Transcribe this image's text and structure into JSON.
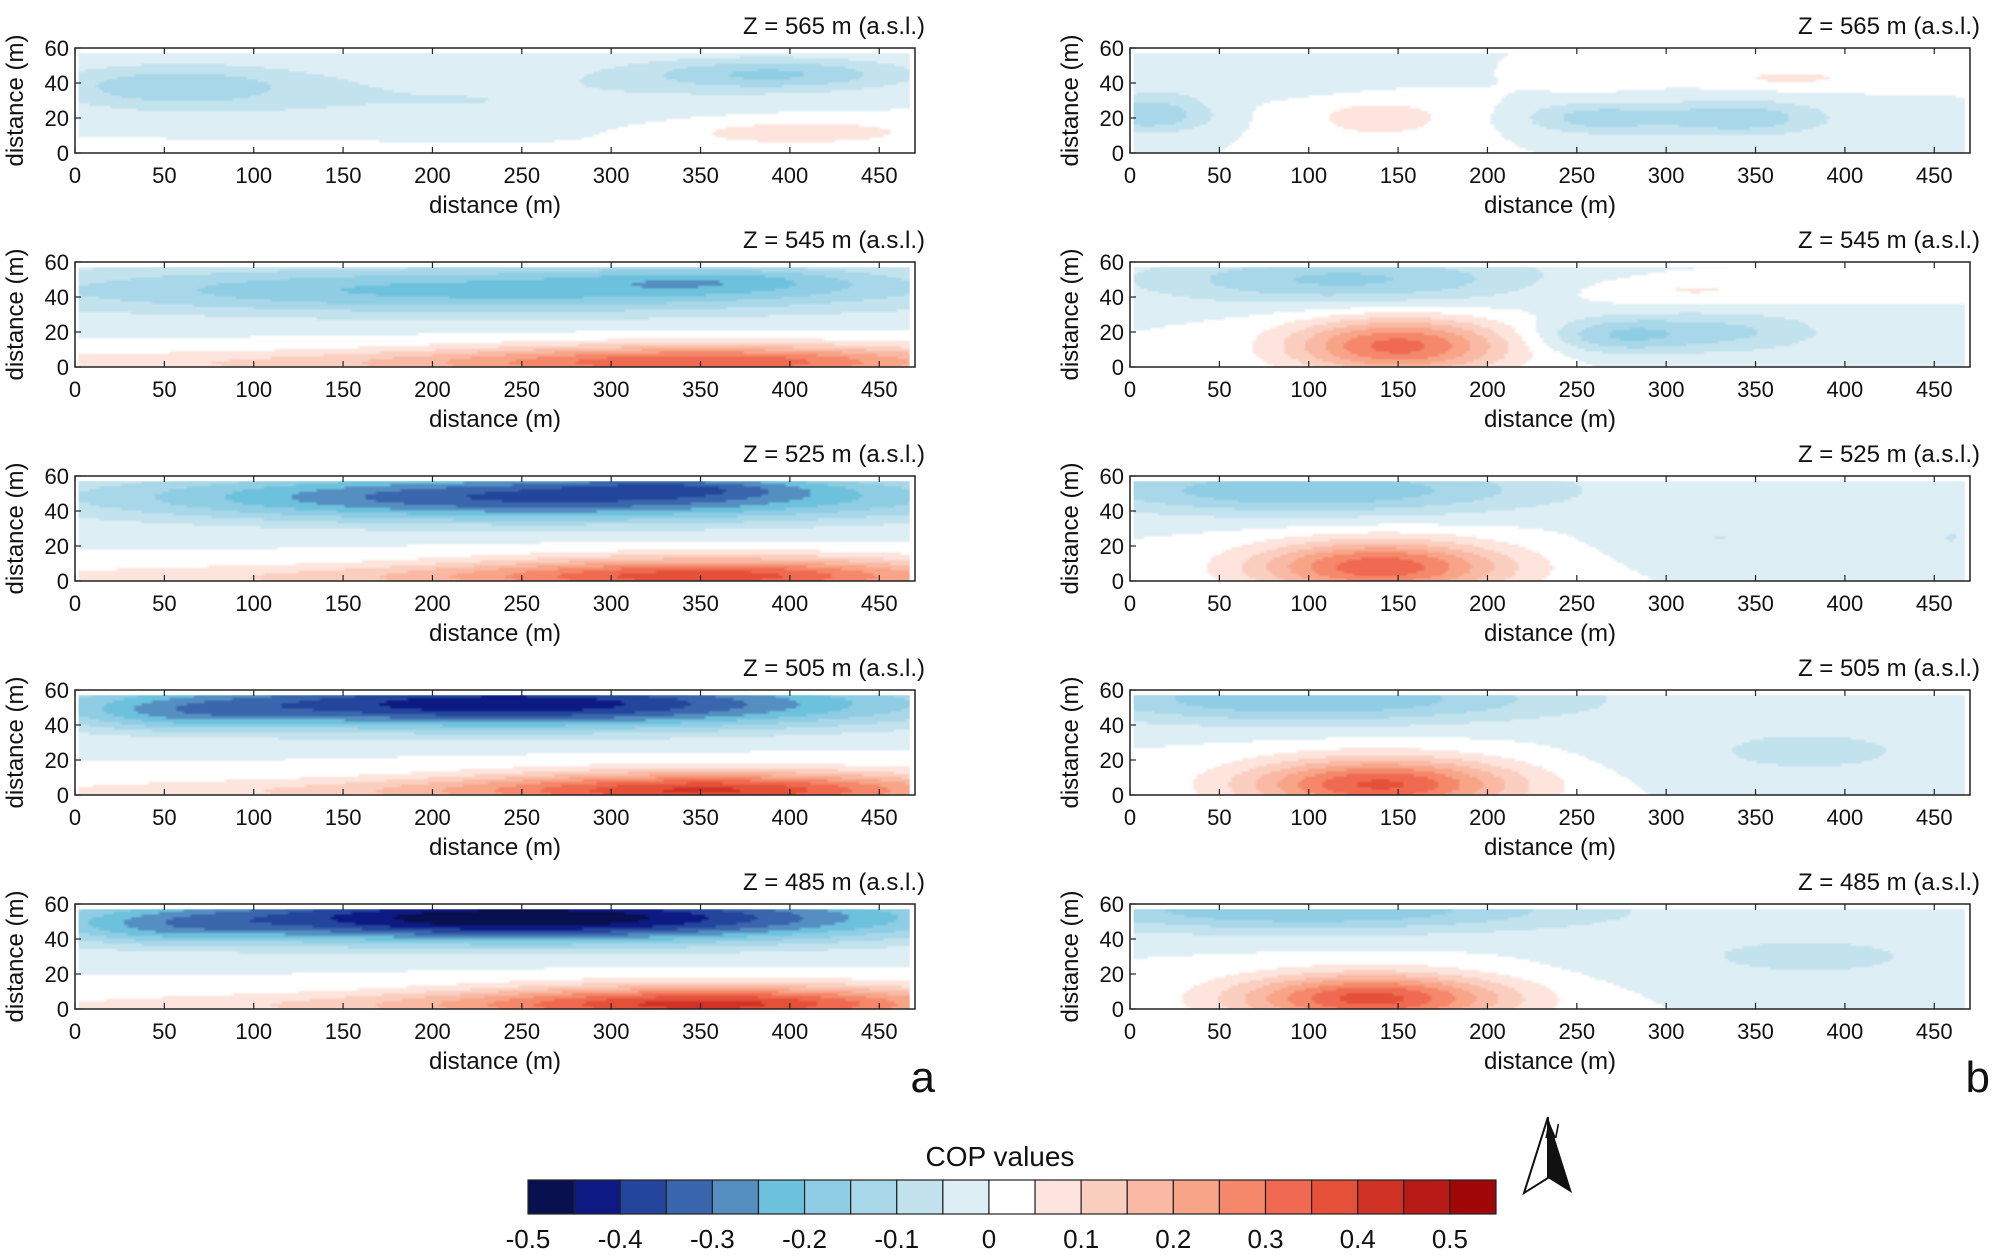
{
  "chart_data": {
    "type": "heatmap",
    "description_labels": {
      "xlabel": "distance (m)",
      "ylabel": "distance (m)",
      "colorbar_title": "COP values",
      "north_label": "N"
    },
    "x_range": [
      0,
      470
    ],
    "y_range": [
      0,
      60
    ],
    "x_ticks": [
      "0",
      "50",
      "100",
      "150",
      "200",
      "250",
      "300",
      "350",
      "400",
      "450"
    ],
    "y_ticks": [
      "0",
      "20",
      "40",
      "60"
    ],
    "value_range": [
      -0.5,
      0.55
    ],
    "colorbar_ticks": [
      "-0.5",
      "-0.4",
      "-0.3",
      "-0.2",
      "-0.1",
      "0",
      "0.1",
      "0.2",
      "0.3",
      "0.4",
      "0.5"
    ],
    "colorbar_levels": [
      -0.5,
      -0.45,
      -0.4,
      -0.35,
      -0.3,
      -0.25,
      -0.2,
      -0.15,
      -0.1,
      -0.05,
      0,
      0.05,
      0.1,
      0.15,
      0.2,
      0.25,
      0.3,
      0.35,
      0.4,
      0.45,
      0.5,
      0.55
    ],
    "colors": [
      "#08104f",
      "#0e1a84",
      "#23469c",
      "#3a66ad",
      "#558fc2",
      "#6cc1dd",
      "#8ecde3",
      "#a7d7e8",
      "#c2e2ee",
      "#deeef5",
      "#ffffff",
      "#fde5dd",
      "#fbcfc0",
      "#f9b9a4",
      "#f7a487",
      "#f5876a",
      "#ef6a50",
      "#e45038",
      "#d03325",
      "#b81b17",
      "#a00708"
    ],
    "columns": [
      {
        "letter": "a",
        "panels": [
          {
            "z_label": "Z = 565 m (a.s.l.)",
            "features": [
              {
                "x": 55,
                "y": 38,
                "sx": 70,
                "sy": 12,
                "amp": -0.13
              },
              {
                "x": 390,
                "y": 45,
                "sx": 75,
                "sy": 9,
                "amp": -0.15
              },
              {
                "x": 220,
                "y": 30,
                "sx": 170,
                "sy": 22,
                "amp": -0.05
              },
              {
                "x": 400,
                "y": 12,
                "sx": 90,
                "sy": 9,
                "amp": 0.08
              },
              {
                "x": 120,
                "y": 2,
                "sx": 180,
                "sy": 5,
                "amp": 0.04
              }
            ]
          },
          {
            "z_label": "Z = 545 m (a.s.l.)",
            "features": [
              {
                "x": 230,
                "y": 44,
                "sx": 260,
                "sy": 14,
                "amp": -0.22
              },
              {
                "x": 360,
                "y": 50,
                "sx": 80,
                "sy": 8,
                "amp": -0.1
              },
              {
                "x": 360,
                "y": 3,
                "sx": 150,
                "sy": 10,
                "amp": 0.3
              },
              {
                "x": 150,
                "y": 2,
                "sx": 250,
                "sy": 8,
                "amp": 0.1
              }
            ]
          },
          {
            "z_label": "Z = 525 m (a.s.l.)",
            "features": [
              {
                "x": 260,
                "y": 48,
                "sx": 230,
                "sy": 14,
                "amp": -0.36
              },
              {
                "x": 340,
                "y": 54,
                "sx": 70,
                "sy": 6,
                "amp": -0.1
              },
              {
                "x": 360,
                "y": 3,
                "sx": 140,
                "sy": 11,
                "amp": 0.32
              },
              {
                "x": 180,
                "y": 2,
                "sx": 260,
                "sy": 8,
                "amp": 0.1
              }
            ]
          },
          {
            "z_label": "Z = 505 m (a.s.l.)",
            "features": [
              {
                "x": 240,
                "y": 52,
                "sx": 220,
                "sy": 14,
                "amp": -0.44
              },
              {
                "x": 60,
                "y": 46,
                "sx": 60,
                "sy": 10,
                "amp": -0.1
              },
              {
                "x": 360,
                "y": 3,
                "sx": 140,
                "sy": 11,
                "amp": 0.34
              },
              {
                "x": 200,
                "y": 2,
                "sx": 260,
                "sy": 8,
                "amp": 0.1
              }
            ]
          },
          {
            "z_label": "Z = 485 m (a.s.l.)",
            "features": [
              {
                "x": 250,
                "y": 52,
                "sx": 220,
                "sy": 14,
                "amp": -0.5
              },
              {
                "x": 50,
                "y": 46,
                "sx": 60,
                "sy": 10,
                "amp": -0.1
              },
              {
                "x": 360,
                "y": 3,
                "sx": 140,
                "sy": 11,
                "amp": 0.35
              },
              {
                "x": 210,
                "y": 2,
                "sx": 260,
                "sy": 8,
                "amp": 0.1
              }
            ]
          }
        ]
      },
      {
        "letter": "b",
        "panels": [
          {
            "z_label": "Z = 565 m (a.s.l.)",
            "features": [
              {
                "x": 10,
                "y": 22,
                "sx": 35,
                "sy": 10,
                "amp": -0.15
              },
              {
                "x": 260,
                "y": 20,
                "sx": 40,
                "sy": 9,
                "amp": -0.12
              },
              {
                "x": 340,
                "y": 20,
                "sx": 50,
                "sy": 10,
                "amp": -0.14
              },
              {
                "x": 140,
                "y": 20,
                "sx": 50,
                "sy": 14,
                "amp": 0.07
              },
              {
                "x": 260,
                "y": 43,
                "sx": 30,
                "sy": 6,
                "amp": 0.05
              },
              {
                "x": 370,
                "y": 43,
                "sx": 50,
                "sy": 6,
                "amp": 0.06
              },
              {
                "x": 70,
                "y": 40,
                "sx": 80,
                "sy": 8,
                "amp": -0.05
              }
            ]
          },
          {
            "z_label": "Z = 545 m (a.s.l.)",
            "features": [
              {
                "x": 120,
                "y": 50,
                "sx": 110,
                "sy": 14,
                "amp": -0.16
              },
              {
                "x": 150,
                "y": 12,
                "sx": 60,
                "sy": 16,
                "amp": 0.32
              },
              {
                "x": 270,
                "y": 18,
                "sx": 40,
                "sy": 10,
                "amp": -0.12
              },
              {
                "x": 330,
                "y": 20,
                "sx": 60,
                "sy": 12,
                "amp": -0.11
              },
              {
                "x": 310,
                "y": 44,
                "sx": 70,
                "sy": 8,
                "amp": 0.06
              }
            ]
          },
          {
            "z_label": "Z = 525 m (a.s.l.)",
            "features": [
              {
                "x": 100,
                "y": 52,
                "sx": 130,
                "sy": 14,
                "amp": -0.2
              },
              {
                "x": 140,
                "y": 8,
                "sx": 70,
                "sy": 15,
                "amp": 0.34
              },
              {
                "x": 330,
                "y": 25,
                "sx": 60,
                "sy": 15,
                "amp": -0.05
              },
              {
                "x": 460,
                "y": 25,
                "sx": 30,
                "sy": 20,
                "amp": -0.05
              }
            ]
          },
          {
            "z_label": "Z = 505 m (a.s.l.)",
            "features": [
              {
                "x": 100,
                "y": 55,
                "sx": 140,
                "sy": 14,
                "amp": -0.2
              },
              {
                "x": 140,
                "y": 6,
                "sx": 75,
                "sy": 15,
                "amp": 0.36
              },
              {
                "x": 380,
                "y": 25,
                "sx": 100,
                "sy": 20,
                "amp": -0.06
              }
            ]
          },
          {
            "z_label": "Z = 485 m (a.s.l.)",
            "features": [
              {
                "x": 100,
                "y": 57,
                "sx": 150,
                "sy": 13,
                "amp": -0.2
              },
              {
                "x": 135,
                "y": 6,
                "sx": 75,
                "sy": 14,
                "amp": 0.37
              },
              {
                "x": 380,
                "y": 30,
                "sx": 110,
                "sy": 18,
                "amp": -0.06
              }
            ]
          }
        ]
      }
    ]
  }
}
